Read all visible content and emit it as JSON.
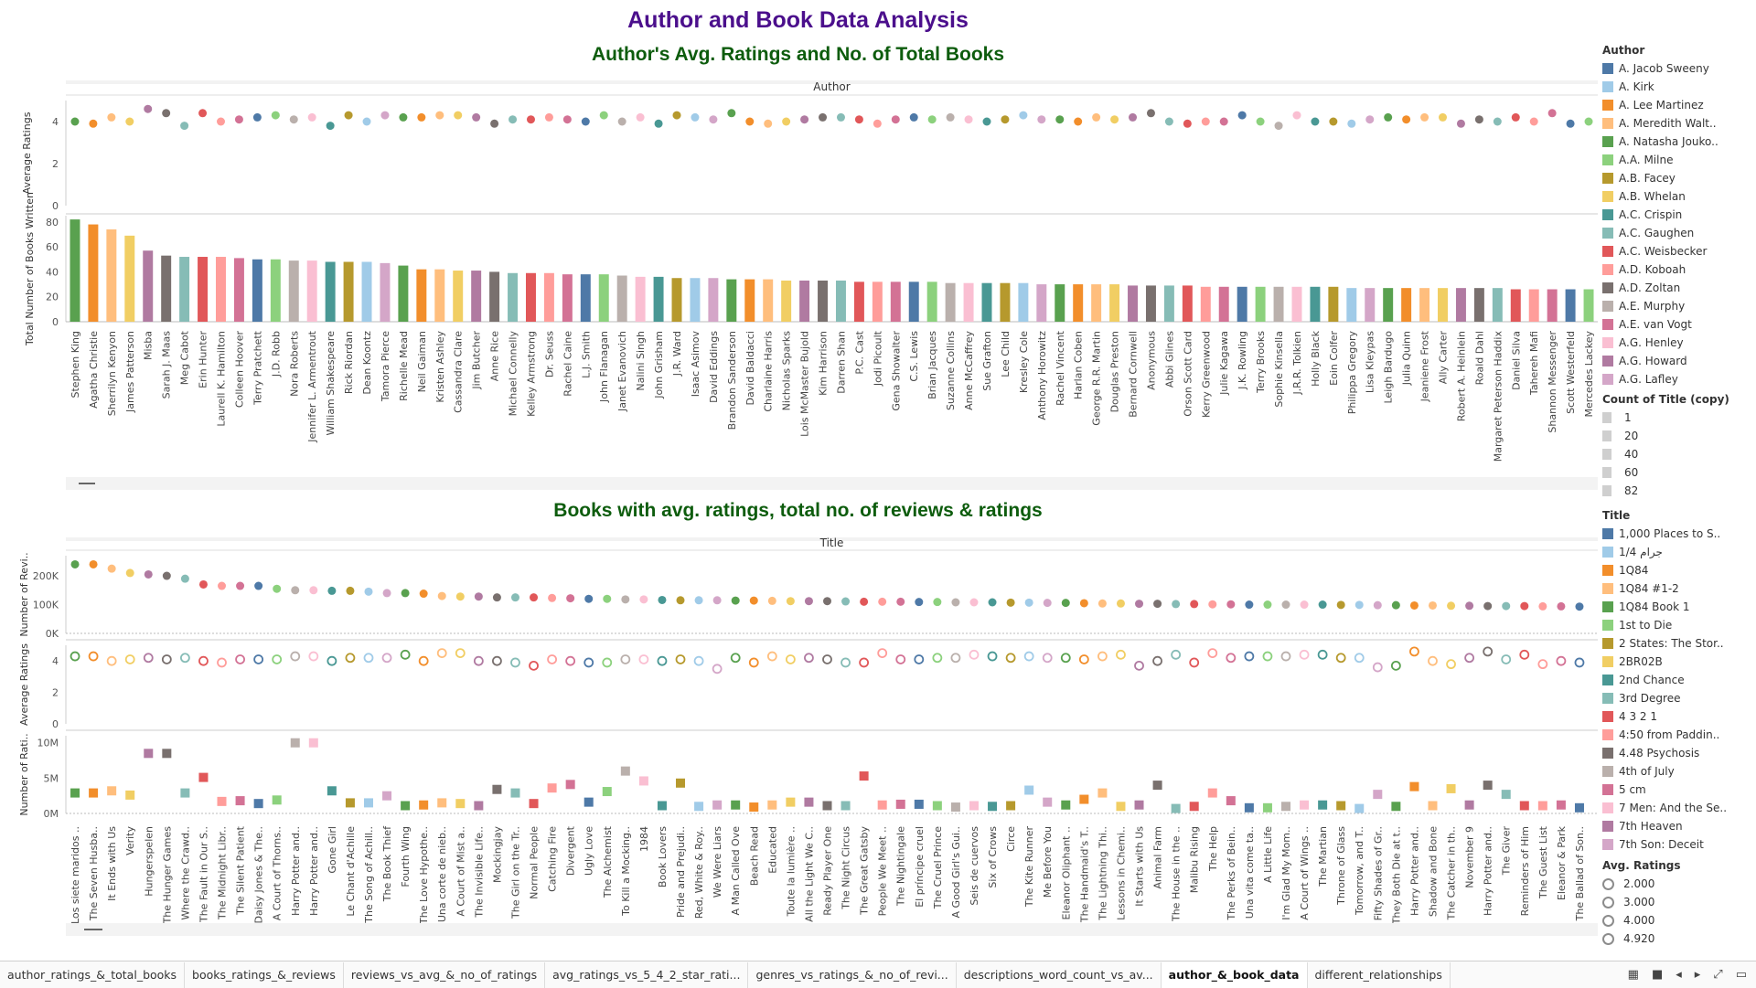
{
  "dashboard_title": "Author and Book Data Analysis",
  "chart_data": [
    {
      "type": "scatter",
      "title": "Author's Avg. Ratings and No. of Total Books",
      "header": "Author",
      "ylabel": "Average Ratings",
      "yticks": [
        "0",
        "2",
        "4"
      ],
      "ylim": [
        0,
        5
      ],
      "categories": [
        "Stephen King",
        "Agatha Christie",
        "Sherrilyn Kenyon",
        "James Patterson",
        "Misba",
        "Sarah J. Maas",
        "Meg Cabot",
        "Erin Hunter",
        "Laurell K. Hamilton",
        "Colleen Hoover",
        "Terry Pratchett",
        "J.D. Robb",
        "Nora Roberts",
        "Jennifer L. Armentrout",
        "William Shakespeare",
        "Rick Riordan",
        "Dean Koontz",
        "Tamora Pierce",
        "Richelle Mead",
        "Neil Gaiman",
        "Kristen Ashley",
        "Cassandra Clare",
        "Jim Butcher",
        "Anne Rice",
        "Michael Connelly",
        "Kelley Armstrong",
        "Dr. Seuss",
        "Rachel Caine",
        "L.J. Smith",
        "John Flanagan",
        "Janet Evanovich",
        "Nalini Singh",
        "John Grisham",
        "J.R. Ward",
        "Isaac Asimov",
        "David Eddings",
        "Brandon Sanderson",
        "David Baldacci",
        "Charlaine Harris",
        "Nicholas Sparks",
        "Lois McMaster Bujold",
        "Kim Harrison",
        "Darren Shan",
        "P.C. Cast",
        "Jodi Picoult",
        "Gena Showalter",
        "C.S. Lewis",
        "Brian Jacques",
        "Suzanne Collins",
        "Anne McCaffrey",
        "Sue Grafton",
        "Lee Child",
        "Kresley Cole",
        "Anthony Horowitz",
        "Rachel Vincent",
        "Harlan Coben",
        "George R.R. Martin",
        "Douglas Preston",
        "Bernard Cornwell",
        "Anonymous",
        "Abbi Glines",
        "Orson Scott Card",
        "Kerry Greenwood",
        "Julie Kagawa",
        "J.K. Rowling",
        "Terry Brooks",
        "Sophie Kinsella",
        "J.R.R. Tolkien",
        "Holly Black",
        "Eoin Colfer",
        "Philippa Gregory",
        "Lisa Kleypas",
        "Leigh Bardugo",
        "Julia Quinn",
        "Jeaniene Frost",
        "Ally Carter",
        "Robert A. Heinlein",
        "Roald Dahl",
        "Margaret Peterson Haddix",
        "Daniel Silva",
        "Tahereh Mafi",
        "Shannon Messenger",
        "Scott Westerfeld",
        "Mercedes Lackey"
      ],
      "avg_ratings": [
        4.0,
        3.9,
        4.2,
        4.0,
        4.6,
        4.4,
        3.8,
        4.4,
        4.0,
        4.1,
        4.2,
        4.3,
        4.1,
        4.2,
        3.8,
        4.3,
        4.0,
        4.3,
        4.2,
        4.2,
        4.3,
        4.3,
        4.2,
        3.9,
        4.1,
        4.1,
        4.2,
        4.1,
        4.0,
        4.3,
        4.0,
        4.2,
        3.9,
        4.3,
        4.2,
        4.1,
        4.4,
        4.0,
        3.9,
        4.0,
        4.1,
        4.2,
        4.2,
        4.1,
        3.9,
        4.1,
        4.2,
        4.1,
        4.2,
        4.1,
        4.0,
        4.1,
        4.3,
        4.1,
        4.1,
        4.0,
        4.2,
        4.1,
        4.2,
        4.4,
        4.0,
        3.9,
        4.0,
        4.0,
        4.3,
        4.0,
        3.8,
        4.3,
        4.0,
        4.0,
        3.9,
        4.1,
        4.2,
        4.1,
        4.2,
        4.2,
        3.9,
        4.1,
        4.0,
        4.2,
        4.0,
        4.4,
        3.9,
        4.0
      ],
      "bars_ylabel": "Total Number of Books Written",
      "bars_yticks": [
        "0",
        "20",
        "40",
        "60",
        "80"
      ],
      "bars_ylim": [
        0,
        85
      ],
      "books_written": [
        82,
        78,
        74,
        69,
        57,
        53,
        52,
        52,
        52,
        51,
        50,
        50,
        49,
        49,
        48,
        48,
        48,
        47,
        45,
        42,
        42,
        41,
        41,
        40,
        39,
        39,
        39,
        38,
        38,
        38,
        37,
        36,
        36,
        35,
        35,
        35,
        34,
        34,
        34,
        33,
        33,
        33,
        33,
        32,
        32,
        32,
        32,
        32,
        31,
        31,
        31,
        31,
        31,
        30,
        30,
        30,
        30,
        30,
        29,
        29,
        29,
        29,
        28,
        28,
        28,
        28,
        28,
        28,
        28,
        28,
        27,
        27,
        27,
        27,
        27,
        27,
        27,
        27,
        27,
        26,
        26,
        26,
        26,
        26
      ]
    },
    {
      "type": "scatter",
      "title": "Books with avg. ratings, total no. of reviews & ratings",
      "header": "Title",
      "reviews_ylabel": "Number of Revi..",
      "reviews_yticks": [
        "0K",
        "100K",
        "200K"
      ],
      "ratings_ylabel": "Average Ratings",
      "ratings_yticks": [
        "0",
        "2",
        "4"
      ],
      "num_ratings_ylabel": "Number of Rati..",
      "num_ratings_yticks": [
        "0M",
        "5M",
        "10M"
      ],
      "categories": [
        "Los siete maridos ..",
        "The Seven Husba..",
        "It Ends with Us",
        "Verity",
        "Hungerspelen",
        "The Hunger Games",
        "Where the Crawd..",
        "The Fault in Our S..",
        "The Midnight Libr..",
        "The Silent Patient",
        "Daisy Jones & The..",
        "A Court of Thorns..",
        "Harry Potter and..",
        "Harry Potter and..",
        "Gone Girl",
        "Le Chant d'Achille",
        "The Song of Achill..",
        "The Book Thief",
        "Fourth Wing",
        "The Love Hypothe..",
        "Una corte de nieb..",
        "A Court of Mist a..",
        "The Invisible Life..",
        "Mockingjay",
        "The Girl on the Tr..",
        "Normal People",
        "Catching Fire",
        "Divergent",
        "Ugly Love",
        "The Alchemist",
        "To Kill a Mocking..",
        "1984",
        "Book Lovers",
        "Pride and Prejudi..",
        "Red, White & Roy..",
        "We Were Liars",
        "A Man Called Ove",
        "Beach Read",
        "Educated",
        "Toute la lumière ..",
        "All the Light We C..",
        "Ready Player One",
        "The Night Circus",
        "The Great Gatsby",
        "People We Meet ..",
        "The Nightingale",
        "El príncipe cruel",
        "The Cruel Prince",
        "A Good Girl's Gui..",
        "Seis de cuervos",
        "Six of Crows",
        "Circe",
        "The Kite Runner",
        "Me Before You",
        "Eleanor Oliphant ..",
        "The Handmaid's T..",
        "The Lightning Thi..",
        "Lessons in Chemi..",
        "It Starts with Us",
        "Animal Farm",
        "The House in the ..",
        "Malibu Rising",
        "The Help",
        "The Perks of Bein..",
        "Una vita come ta..",
        "A Little Life",
        "I'm Glad My Mom..",
        "A Court of Wings ..",
        "The Martian",
        "Throne of Glass",
        "Tomorrow, and T..",
        "Fifty Shades of Gr..",
        "They Both Die at t..",
        "Harry Potter and..",
        "Shadow and Bone",
        "The Catcher in th..",
        "November 9",
        "Harry Potter and..",
        "The Giver",
        "Reminders of Him",
        "The Guest List",
        "Eleanor & Park",
        "The Ballad of Son.."
      ],
      "num_reviews_k": [
        240,
        240,
        225,
        210,
        205,
        200,
        190,
        170,
        165,
        165,
        165,
        155,
        150,
        150,
        148,
        148,
        145,
        140,
        140,
        138,
        130,
        128,
        128,
        125,
        125,
        125,
        123,
        122,
        120,
        120,
        118,
        118,
        116,
        115,
        115,
        115,
        114,
        114,
        113,
        112,
        112,
        112,
        111,
        110,
        110,
        110,
        109,
        109,
        108,
        108,
        108,
        107,
        107,
        106,
        106,
        105,
        104,
        104,
        103,
        103,
        102,
        102,
        101,
        101,
        100,
        100,
        100,
        100,
        100,
        99,
        99,
        98,
        98,
        97,
        97,
        96,
        96,
        95,
        95,
        95,
        94,
        94,
        93
      ],
      "avg_ratings": [
        4.3,
        4.3,
        4.0,
        4.1,
        4.2,
        4.1,
        4.2,
        4.0,
        3.9,
        4.1,
        4.1,
        4.1,
        4.3,
        4.3,
        4.0,
        4.2,
        4.2,
        4.2,
        4.4,
        4.0,
        4.5,
        4.5,
        4.0,
        4.0,
        3.9,
        3.7,
        4.1,
        4.0,
        3.9,
        3.9,
        4.1,
        4.1,
        4.0,
        4.1,
        4.0,
        3.5,
        4.2,
        3.9,
        4.3,
        4.1,
        4.2,
        4.1,
        3.9,
        3.9,
        4.5,
        4.1,
        4.1,
        4.2,
        4.2,
        4.4,
        4.3,
        4.2,
        4.3,
        4.2,
        4.2,
        4.1,
        4.3,
        4.4,
        3.7,
        4.0,
        4.4,
        3.9,
        4.5,
        4.2,
        4.3,
        4.3,
        4.3,
        4.4,
        4.4,
        4.2,
        4.2,
        3.6,
        3.7,
        4.6,
        4.0,
        3.8,
        4.2,
        4.6,
        4.1,
        4.4,
        3.8,
        4.0,
        3.9
      ],
      "num_ratings_m": [
        2.9,
        2.9,
        3.2,
        2.6,
        8.5,
        8.5,
        2.9,
        5.1,
        1.7,
        1.8,
        1.4,
        1.9,
        10.0,
        10.0,
        3.2,
        1.5,
        1.5,
        2.5,
        1.1,
        1.2,
        1.5,
        1.4,
        1.1,
        3.4,
        2.9,
        1.4,
        3.6,
        4.1,
        1.6,
        3.1,
        6.0,
        4.6,
        1.1,
        4.3,
        1.0,
        1.2,
        1.2,
        0.9,
        1.2,
        1.6,
        1.6,
        1.1,
        1.1,
        5.3,
        1.2,
        1.3,
        1.3,
        1.1,
        0.9,
        1.1,
        1.0,
        1.1,
        3.3,
        1.6,
        1.2,
        2.0,
        2.9,
        1.0,
        1.2,
        4.0,
        0.7,
        1.0,
        2.9,
        1.8,
        0.8,
        0.8,
        1.0,
        1.2,
        1.2,
        1.1,
        0.7,
        2.7,
        1.0,
        3.8,
        1.1,
        3.5,
        1.2,
        4.0,
        2.7,
        1.1,
        1.1,
        1.2,
        0.8
      ]
    }
  ],
  "legends": {
    "author_title": "Author",
    "author_items": [
      {
        "label": "A. Jacob Sweeny",
        "color": "#4e79a7"
      },
      {
        "label": "A. Kirk",
        "color": "#a0cbe8"
      },
      {
        "label": "A. Lee Martinez",
        "color": "#f28e2b"
      },
      {
        "label": "A. Meredith Walt..",
        "color": "#ffbe7d"
      },
      {
        "label": "A. Natasha Jouko..",
        "color": "#59a14f"
      },
      {
        "label": "A.A. Milne",
        "color": "#8cd17d"
      },
      {
        "label": "A.B. Facey",
        "color": "#b6992d"
      },
      {
        "label": "A.B. Whelan",
        "color": "#f1ce63"
      },
      {
        "label": "A.C. Crispin",
        "color": "#499894"
      },
      {
        "label": "A.C. Gaughen",
        "color": "#86bcb6"
      },
      {
        "label": "A.C. Weisbecker",
        "color": "#e15759"
      },
      {
        "label": "A.D. Koboah",
        "color": "#ff9d9a"
      },
      {
        "label": "A.D. Zoltan",
        "color": "#79706e"
      },
      {
        "label": "A.E. Murphy",
        "color": "#bab0ac"
      },
      {
        "label": "A.E. van Vogt",
        "color": "#d37295"
      },
      {
        "label": "A.G. Henley",
        "color": "#fabfd2"
      },
      {
        "label": "A.G. Howard",
        "color": "#b07aa1"
      },
      {
        "label": "A.G. Lafley",
        "color": "#d4a6c8"
      }
    ],
    "count_title": "Count of Title (copy)",
    "count_items": [
      "1",
      "20",
      "40",
      "60",
      "82"
    ],
    "title_title": "Title",
    "title_items": [
      {
        "label": "1,000 Places to S..",
        "color": "#4e79a7"
      },
      {
        "label": "1/4 جرام",
        "color": "#a0cbe8"
      },
      {
        "label": "1Q84",
        "color": "#f28e2b"
      },
      {
        "label": "1Q84 #1-2",
        "color": "#ffbe7d"
      },
      {
        "label": "1Q84 Book 1",
        "color": "#59a14f"
      },
      {
        "label": "1st to Die",
        "color": "#8cd17d"
      },
      {
        "label": "2 States: The Stor..",
        "color": "#b6992d"
      },
      {
        "label": "2BR02B",
        "color": "#f1ce63"
      },
      {
        "label": "2nd Chance",
        "color": "#499894"
      },
      {
        "label": "3rd Degree",
        "color": "#86bcb6"
      },
      {
        "label": "4 3 2 1",
        "color": "#e15759"
      },
      {
        "label": "4:50 from Paddin..",
        "color": "#ff9d9a"
      },
      {
        "label": "4.48 Psychosis",
        "color": "#79706e"
      },
      {
        "label": "4th of July",
        "color": "#bab0ac"
      },
      {
        "label": "5 cm",
        "color": "#d37295"
      },
      {
        "label": "7 Men: And the Se..",
        "color": "#fabfd2"
      },
      {
        "label": "7th Heaven",
        "color": "#b07aa1"
      },
      {
        "label": "7th Son: Deceit",
        "color": "#d4a6c8"
      }
    ],
    "avg_title": "Avg. Ratings",
    "avg_items": [
      "2.000",
      "3.000",
      "4.000",
      "4.920"
    ]
  },
  "palette": [
    "#59a14f",
    "#f28e2b",
    "#ffbe7d",
    "#f1ce63",
    "#b07aa1",
    "#79706e",
    "#86bcb6",
    "#e15759",
    "#ff9d9a",
    "#d37295",
    "#4e79a7",
    "#8cd17d",
    "#bab0ac",
    "#fabfd2",
    "#499894",
    "#b6992d",
    "#a0cbe8",
    "#d4a6c8"
  ],
  "tabs": [
    "author_ratings_&_total_books",
    "books_ratings_&_reviews",
    "reviews_vs_avg_&_no_of_ratings",
    "avg_ratings_vs_5_4_2_star_rati...",
    "genres_vs_ratings_&_no_of_revi...",
    "descriptions_word_count_vs_av...",
    "author_&_book_data",
    "different_relationships"
  ],
  "active_tab": "author_&_book_data"
}
